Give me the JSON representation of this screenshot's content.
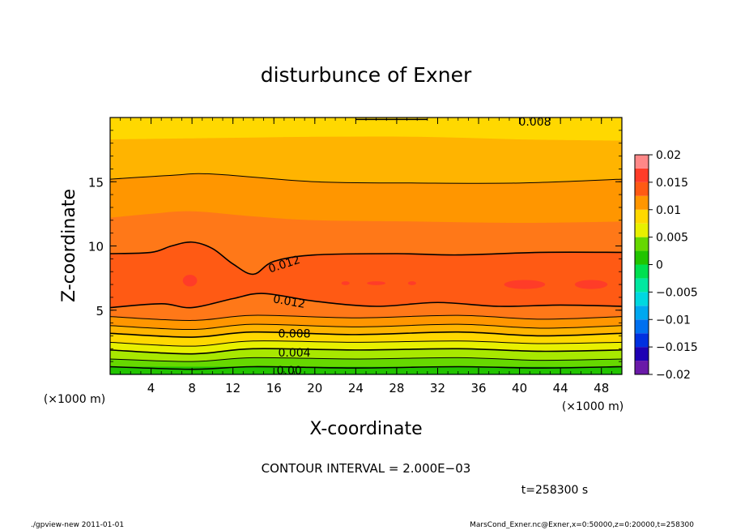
{
  "chart_data": {
    "type": "heatmap",
    "title": "disturbunce of Exner",
    "xlabel": "X-coordinate",
    "ylabel": "Z-coordinate",
    "x_unit_left": "(×1000 m)",
    "x_unit_right": "(×1000 m)",
    "xlim": [
      0,
      50
    ],
    "ylim": [
      0,
      20
    ],
    "xticks": [
      {
        "v": 4,
        "label": "4"
      },
      {
        "v": 8,
        "label": "8"
      },
      {
        "v": 12,
        "label": "12"
      },
      {
        "v": 16,
        "label": "16"
      },
      {
        "v": 20,
        "label": "20"
      },
      {
        "v": 24,
        "label": "24"
      },
      {
        "v": 28,
        "label": "28"
      },
      {
        "v": 32,
        "label": "32"
      },
      {
        "v": 36,
        "label": "36"
      },
      {
        "v": 40,
        "label": "40"
      },
      {
        "v": 44,
        "label": "44"
      },
      {
        "v": 48,
        "label": "48"
      }
    ],
    "yticks": [
      {
        "v": 5,
        "label": "5"
      },
      {
        "v": 10,
        "label": "10"
      },
      {
        "v": 15,
        "label": "15"
      }
    ],
    "bands": [
      {
        "color": "#22c400",
        "z": [
          [
            0,
            0.6
          ],
          [
            50,
            0.6
          ]
        ]
      },
      {
        "color": "#66d800",
        "z": [
          [
            0,
            1.2
          ],
          [
            8,
            1.0
          ],
          [
            14,
            1.3
          ],
          [
            24,
            1.2
          ],
          [
            34,
            1.3
          ],
          [
            42,
            1.1
          ],
          [
            50,
            1.2
          ]
        ]
      },
      {
        "color": "#a8e800",
        "z": [
          [
            0,
            1.9
          ],
          [
            8,
            1.6
          ],
          [
            14,
            2.0
          ],
          [
            24,
            1.9
          ],
          [
            34,
            2.0
          ],
          [
            42,
            1.8
          ],
          [
            50,
            1.9
          ]
        ]
      },
      {
        "color": "#e8f000",
        "z": [
          [
            0,
            2.5
          ],
          [
            8,
            2.2
          ],
          [
            14,
            2.6
          ],
          [
            24,
            2.5
          ],
          [
            34,
            2.6
          ],
          [
            42,
            2.4
          ],
          [
            50,
            2.5
          ]
        ]
      },
      {
        "color": "#ffd800",
        "z": [
          [
            0,
            3.2
          ],
          [
            8,
            2.9
          ],
          [
            14,
            3.3
          ],
          [
            24,
            3.1
          ],
          [
            34,
            3.3
          ],
          [
            42,
            3.0
          ],
          [
            50,
            3.2
          ]
        ]
      },
      {
        "color": "#ffb400",
        "z": [
          [
            0,
            3.8
          ],
          [
            8,
            3.5
          ],
          [
            14,
            3.9
          ],
          [
            24,
            3.7
          ],
          [
            34,
            3.9
          ],
          [
            42,
            3.6
          ],
          [
            50,
            3.8
          ]
        ]
      },
      {
        "color": "#ff9600",
        "z": [
          [
            0,
            4.5
          ],
          [
            8,
            4.2
          ],
          [
            14,
            4.6
          ],
          [
            24,
            4.4
          ],
          [
            34,
            4.6
          ],
          [
            42,
            4.3
          ],
          [
            50,
            4.5
          ]
        ]
      },
      {
        "color": "#ff7818",
        "z": [
          [
            0,
            5.2
          ],
          [
            5,
            5.5
          ],
          [
            8,
            5.2
          ],
          [
            12,
            5.9
          ],
          [
            15,
            6.3
          ],
          [
            20,
            5.7
          ],
          [
            26,
            5.3
          ],
          [
            32,
            5.6
          ],
          [
            38,
            5.3
          ],
          [
            44,
            5.4
          ],
          [
            50,
            5.3
          ]
        ]
      },
      {
        "color": "#ff5a14",
        "z": [
          [
            0,
            9.4
          ],
          [
            4,
            9.5
          ],
          [
            6,
            10.0
          ],
          [
            8,
            10.3
          ],
          [
            10,
            9.8
          ],
          [
            12,
            8.6
          ],
          [
            14,
            7.8
          ],
          [
            16,
            8.8
          ],
          [
            20,
            9.3
          ],
          [
            28,
            9.4
          ],
          [
            34,
            9.3
          ],
          [
            42,
            9.5
          ],
          [
            50,
            9.5
          ]
        ]
      },
      {
        "color": "#ff7818",
        "z": [
          [
            0,
            12.2
          ],
          [
            4,
            12.5
          ],
          [
            8,
            12.7
          ],
          [
            14,
            12.3
          ],
          [
            20,
            12.0
          ],
          [
            30,
            11.9
          ],
          [
            40,
            11.8
          ],
          [
            50,
            11.9
          ]
        ]
      },
      {
        "color": "#ff9600",
        "z": [
          [
            0,
            15.2
          ],
          [
            6,
            15.5
          ],
          [
            10,
            15.6
          ],
          [
            20,
            15.0
          ],
          [
            30,
            14.9
          ],
          [
            40,
            14.9
          ],
          [
            50,
            15.2
          ]
        ]
      },
      {
        "color": "#ffb400",
        "z": [
          [
            0,
            18.3
          ],
          [
            10,
            18.4
          ],
          [
            20,
            18.5
          ],
          [
            30,
            18.5
          ],
          [
            40,
            18.3
          ],
          [
            50,
            18.2
          ]
        ]
      },
      {
        "color": "#ffd800",
        "z": null
      }
    ],
    "contours": [
      {
        "z": [
          [
            0,
            0.6
          ],
          [
            8,
            0.4
          ],
          [
            14,
            0.6
          ],
          [
            24,
            0.5
          ],
          [
            34,
            0.6
          ],
          [
            42,
            0.5
          ],
          [
            50,
            0.6
          ]
        ],
        "w": 1.6,
        "label": "0.00"
      },
      {
        "z": [
          [
            0,
            1.2
          ],
          [
            8,
            1.0
          ],
          [
            14,
            1.3
          ],
          [
            24,
            1.2
          ],
          [
            34,
            1.3
          ],
          [
            42,
            1.1
          ],
          [
            50,
            1.2
          ]
        ],
        "w": 1.0,
        "label": ""
      },
      {
        "z": [
          [
            0,
            1.9
          ],
          [
            8,
            1.6
          ],
          [
            14,
            2.0
          ],
          [
            24,
            1.9
          ],
          [
            34,
            2.0
          ],
          [
            42,
            1.8
          ],
          [
            50,
            1.9
          ]
        ],
        "w": 1.6,
        "label": "0.004"
      },
      {
        "z": [
          [
            0,
            2.5
          ],
          [
            8,
            2.2
          ],
          [
            14,
            2.6
          ],
          [
            24,
            2.5
          ],
          [
            34,
            2.6
          ],
          [
            42,
            2.4
          ],
          [
            50,
            2.5
          ]
        ],
        "w": 1.0,
        "label": ""
      },
      {
        "z": [
          [
            0,
            3.2
          ],
          [
            8,
            2.9
          ],
          [
            14,
            3.3
          ],
          [
            24,
            3.1
          ],
          [
            34,
            3.3
          ],
          [
            42,
            3.0
          ],
          [
            50,
            3.2
          ]
        ],
        "w": 1.6,
        "label": "0.008"
      },
      {
        "z": [
          [
            0,
            3.8
          ],
          [
            8,
            3.5
          ],
          [
            14,
            3.9
          ],
          [
            24,
            3.7
          ],
          [
            34,
            3.9
          ],
          [
            42,
            3.6
          ],
          [
            50,
            3.8
          ]
        ],
        "w": 1.0,
        "label": ""
      },
      {
        "z": [
          [
            0,
            4.5
          ],
          [
            8,
            4.2
          ],
          [
            14,
            4.6
          ],
          [
            24,
            4.4
          ],
          [
            34,
            4.6
          ],
          [
            42,
            4.3
          ],
          [
            50,
            4.5
          ]
        ],
        "w": 1.0,
        "label": ""
      },
      {
        "z": [
          [
            0,
            5.2
          ],
          [
            5,
            5.5
          ],
          [
            8,
            5.2
          ],
          [
            12,
            5.9
          ],
          [
            15,
            6.3
          ],
          [
            20,
            5.7
          ],
          [
            26,
            5.3
          ],
          [
            32,
            5.6
          ],
          [
            38,
            5.3
          ],
          [
            44,
            5.4
          ],
          [
            50,
            5.3
          ]
        ],
        "w": 1.6,
        "label": "0.012"
      },
      {
        "z": [
          [
            0,
            9.4
          ],
          [
            4,
            9.5
          ],
          [
            6,
            10.0
          ],
          [
            8,
            10.3
          ],
          [
            10,
            9.8
          ],
          [
            12,
            8.6
          ],
          [
            14,
            7.8
          ],
          [
            16,
            8.8
          ],
          [
            20,
            9.3
          ],
          [
            28,
            9.4
          ],
          [
            34,
            9.3
          ],
          [
            42,
            9.5
          ],
          [
            50,
            9.5
          ]
        ],
        "w": 1.6,
        "label": "0.012"
      },
      {
        "z": [
          [
            0,
            15.2
          ],
          [
            6,
            15.5
          ],
          [
            10,
            15.6
          ],
          [
            20,
            15.0
          ],
          [
            30,
            14.9
          ],
          [
            40,
            14.9
          ],
          [
            50,
            15.2
          ]
        ],
        "w": 1.0,
        "label": ""
      },
      {
        "z": [
          [
            24,
            19.85
          ],
          [
            31,
            19.85
          ]
        ],
        "w": 1.6,
        "label": "0.008"
      }
    ],
    "contour_labels": [
      {
        "text": "0.008",
        "x": 41.5,
        "z": 19.7,
        "rot": 0
      },
      {
        "text": "0.012",
        "x": 17.0,
        "z": 8.6,
        "rot": -18
      },
      {
        "text": "0.012",
        "x": 17.5,
        "z": 5.7,
        "rot": 10
      },
      {
        "text": "0.008",
        "x": 18.0,
        "z": 3.2,
        "rot": 0
      },
      {
        "text": "0.004",
        "x": 18.0,
        "z": 1.7,
        "rot": 0
      },
      {
        "text": "0.00",
        "x": 17.5,
        "z": 0.3,
        "rot": 0
      }
    ],
    "max_blobs": [
      {
        "x": 7.8,
        "z": 7.3,
        "rx": 0.7,
        "rz": 0.45
      },
      {
        "x": 40.5,
        "z": 7.0,
        "rx": 2.0,
        "rz": 0.35
      },
      {
        "x": 47.0,
        "z": 7.0,
        "rx": 1.6,
        "rz": 0.35
      },
      {
        "x": 23.0,
        "z": 7.1,
        "rx": 0.4,
        "rz": 0.15
      },
      {
        "x": 26.0,
        "z": 7.1,
        "rx": 0.9,
        "rz": 0.15
      },
      {
        "x": 29.5,
        "z": 7.1,
        "rx": 0.4,
        "rz": 0.15
      }
    ],
    "colorbar": {
      "levels": [
        {
          "from": -0.02,
          "to": -0.0175,
          "color": "#6a1aa8"
        },
        {
          "from": -0.0175,
          "to": -0.015,
          "color": "#1e00b4"
        },
        {
          "from": -0.015,
          "to": -0.0125,
          "color": "#0030e0"
        },
        {
          "from": -0.0125,
          "to": -0.01,
          "color": "#0070f0"
        },
        {
          "from": -0.01,
          "to": -0.0075,
          "color": "#00a8f0"
        },
        {
          "from": -0.0075,
          "to": -0.005,
          "color": "#00d8e0"
        },
        {
          "from": -0.005,
          "to": -0.0025,
          "color": "#00e8a0"
        },
        {
          "from": -0.0025,
          "to": 0,
          "color": "#00e050"
        },
        {
          "from": 0,
          "to": 0.0025,
          "color": "#22c400"
        },
        {
          "from": 0.0025,
          "to": 0.005,
          "color": "#66d800"
        },
        {
          "from": 0.005,
          "to": 0.0075,
          "color": "#e8f000"
        },
        {
          "from": 0.0075,
          "to": 0.01,
          "color": "#ffd800"
        },
        {
          "from": 0.01,
          "to": 0.0125,
          "color": "#ff9600"
        },
        {
          "from": 0.0125,
          "to": 0.015,
          "color": "#ff5a14"
        },
        {
          "from": 0.015,
          "to": 0.0175,
          "color": "#ff3c28"
        },
        {
          "from": 0.0175,
          "to": 0.02,
          "color": "#ff8888"
        }
      ],
      "ticks": [
        {
          "v": 0.02,
          "label": "0.02"
        },
        {
          "v": 0.015,
          "label": "0.015"
        },
        {
          "v": 0.01,
          "label": "0.01"
        },
        {
          "v": 0.005,
          "label": "0.005"
        },
        {
          "v": 0,
          "label": "0"
        },
        {
          "v": -0.005,
          "label": "−0.005"
        },
        {
          "v": -0.01,
          "label": "−0.01"
        },
        {
          "v": -0.015,
          "label": "−0.015"
        },
        {
          "v": -0.02,
          "label": "−0.02"
        }
      ]
    },
    "contour_interval_text": "CONTOUR INTERVAL = 2.000E−03",
    "time_text": "t=258300 s"
  },
  "footer": {
    "left": "./gpview-new  2011-01-01",
    "right": "MarsCond_Exner.nc@Exner,x=0:50000,z=0:20000,t=258300"
  },
  "colors": {
    "max_region": "#ff3c28",
    "contour": "#000000"
  }
}
